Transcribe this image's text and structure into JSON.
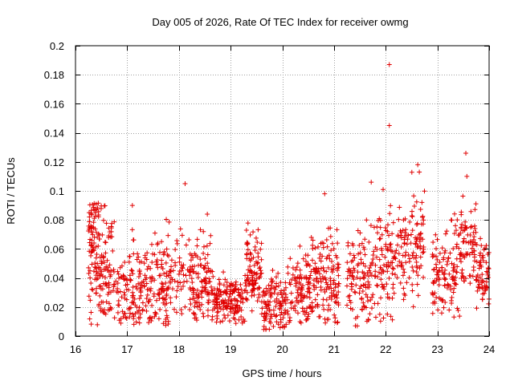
{
  "chart_data": {
    "type": "scatter",
    "title": "Day 005 of 2026, Rate Of TEC Index for receiver owmg",
    "xlabel": "GPS time / hours",
    "ylabel": "ROTI / TECUs",
    "xlim": [
      16,
      24
    ],
    "ylim": [
      0,
      0.2
    ],
    "xticks": [
      16,
      17,
      18,
      19,
      20,
      21,
      22,
      23,
      24
    ],
    "yticks": [
      0,
      0.02,
      0.04,
      0.06,
      0.08,
      0.1,
      0.12,
      0.14,
      0.16,
      0.18,
      0.2
    ],
    "xtick_labels": [
      "16",
      "17",
      "18",
      "19",
      "20",
      "21",
      "22",
      "23",
      "24"
    ],
    "ytick_labels": [
      "0",
      "0.02",
      "0.04",
      "0.06",
      "0.08",
      "0.1",
      "0.12",
      "0.14",
      "0.16",
      "0.18",
      "0.2"
    ],
    "grid": true,
    "marker": "+",
    "marker_color": "#e00000",
    "clusters": [
      {
        "x0": 16.25,
        "x1": 16.45,
        "center": 0.055,
        "spread": 0.022,
        "low": 0.006,
        "high": 0.092,
        "count": 90
      },
      {
        "x0": 16.45,
        "x1": 16.75,
        "center": 0.05,
        "spread": 0.02,
        "low": 0.015,
        "high": 0.095,
        "count": 90
      },
      {
        "x0": 16.75,
        "x1": 17.05,
        "center": 0.028,
        "spread": 0.012,
        "low": 0.008,
        "high": 0.056,
        "count": 50
      },
      {
        "x0": 17.05,
        "x1": 17.4,
        "center": 0.035,
        "spread": 0.018,
        "low": 0.008,
        "high": 0.09,
        "count": 80
      },
      {
        "x0": 17.4,
        "x1": 17.85,
        "center": 0.035,
        "spread": 0.016,
        "low": 0.006,
        "high": 0.084,
        "count": 110
      },
      {
        "x0": 17.85,
        "x1": 18.2,
        "center": 0.04,
        "spread": 0.015,
        "low": 0.015,
        "high": 0.082,
        "count": 40
      },
      {
        "x0": 18.2,
        "x1": 18.65,
        "center": 0.035,
        "spread": 0.014,
        "low": 0.01,
        "high": 0.084,
        "count": 120
      },
      {
        "x0": 18.65,
        "x1": 19.3,
        "center": 0.025,
        "spread": 0.009,
        "low": 0.008,
        "high": 0.07,
        "count": 160
      },
      {
        "x0": 19.3,
        "x1": 19.6,
        "center": 0.045,
        "spread": 0.015,
        "low": 0.015,
        "high": 0.082,
        "count": 90
      },
      {
        "x0": 19.6,
        "x1": 20.15,
        "center": 0.022,
        "spread": 0.01,
        "low": 0.004,
        "high": 0.067,
        "count": 120
      },
      {
        "x0": 20.15,
        "x1": 20.55,
        "center": 0.032,
        "spread": 0.014,
        "low": 0.008,
        "high": 0.068,
        "count": 100
      },
      {
        "x0": 20.55,
        "x1": 21.1,
        "center": 0.038,
        "spread": 0.016,
        "low": 0.008,
        "high": 0.098,
        "count": 140
      },
      {
        "x0": 21.25,
        "x1": 21.75,
        "center": 0.038,
        "spread": 0.016,
        "low": 0.006,
        "high": 0.095,
        "count": 110
      },
      {
        "x0": 21.75,
        "x1": 22.15,
        "center": 0.05,
        "spread": 0.02,
        "low": 0.01,
        "high": 0.1,
        "count": 90
      },
      {
        "x0": 22.15,
        "x1": 22.5,
        "center": 0.055,
        "spread": 0.015,
        "low": 0.025,
        "high": 0.09,
        "count": 60
      },
      {
        "x0": 22.5,
        "x1": 22.75,
        "center": 0.06,
        "spread": 0.02,
        "low": 0.015,
        "high": 0.118,
        "count": 60
      },
      {
        "x0": 22.9,
        "x1": 23.15,
        "center": 0.04,
        "spread": 0.015,
        "low": 0.012,
        "high": 0.07,
        "count": 60
      },
      {
        "x0": 23.15,
        "x1": 23.45,
        "center": 0.05,
        "spread": 0.018,
        "low": 0.012,
        "high": 0.085,
        "count": 60
      },
      {
        "x0": 23.45,
        "x1": 23.75,
        "center": 0.062,
        "spread": 0.015,
        "low": 0.035,
        "high": 0.1,
        "count": 70
      },
      {
        "x0": 23.75,
        "x1": 24.0,
        "center": 0.04,
        "spread": 0.012,
        "low": 0.018,
        "high": 0.07,
        "count": 60
      }
    ],
    "outliers": [
      [
        22.07,
        0.187
      ],
      [
        22.07,
        0.145
      ],
      [
        23.55,
        0.126
      ],
      [
        18.12,
        0.105
      ],
      [
        22.62,
        0.118
      ],
      [
        22.65,
        0.113
      ],
      [
        23.57,
        0.11
      ],
      [
        21.72,
        0.106
      ],
      [
        20.82,
        0.098
      ],
      [
        21.95,
        0.101
      ],
      [
        17.1,
        0.09
      ],
      [
        18.55,
        0.084
      ]
    ]
  }
}
